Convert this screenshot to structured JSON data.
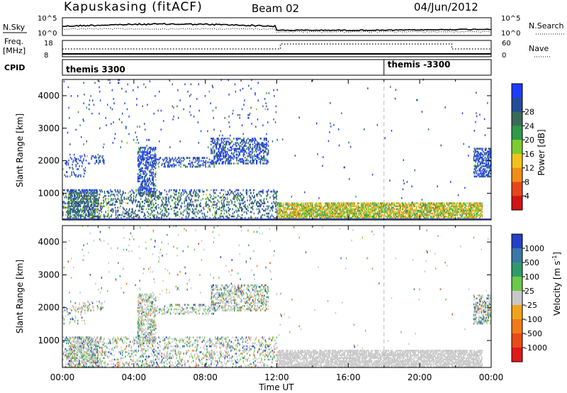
{
  "header": {
    "station": "Kapuskasing (fitACF)",
    "beam": "Beam 02",
    "date": "04/Jun/2012"
  },
  "strips": {
    "nsky_label": "N.Sky",
    "nsky_ticks": [
      "10^5",
      "10^0"
    ],
    "nsearch_label": "N.Search",
    "nsearch_ticks": [
      "10^5",
      "10^0"
    ],
    "freq_label_1": "Freq.",
    "freq_label_2": "[MHz]",
    "freq_ticks": [
      "18",
      "8"
    ],
    "nave_label": "Nave",
    "nave_ticks": [
      "60",
      "0"
    ],
    "cpid_label": "CPID",
    "cpid_entries": [
      {
        "name": "themis 3300",
        "start_ut": 0
      },
      {
        "name": "themis -3300",
        "start_ut": 18
      }
    ]
  },
  "chart_data": [
    {
      "type": "heatmap",
      "title": "",
      "xlabel": "",
      "ylabel": "Slant Range [km]",
      "xlim": [
        0,
        24
      ],
      "ylim": [
        180,
        4500
      ],
      "yticks": [
        1000,
        2000,
        3000,
        4000
      ],
      "colorbar": {
        "label": "Power [dB]",
        "ticks": [
          "4",
          "8",
          "12",
          "16",
          "20",
          "24",
          "28"
        ],
        "colors": [
          "#1e3cff",
          "#244c9a",
          "#3c6a58",
          "#2f9a47",
          "#7dcc2f",
          "#f2c21a",
          "#f28c18",
          "#e8461a",
          "#d21414"
        ]
      }
    },
    {
      "type": "heatmap",
      "title": "",
      "xlabel": "Time UT",
      "ylabel": "Slant Range [km]",
      "xlim": [
        0,
        24
      ],
      "ylim": [
        180,
        4500
      ],
      "yticks": [
        1000,
        2000,
        3000,
        4000
      ],
      "xticks": [
        "00:00",
        "04:00",
        "08:00",
        "12:00",
        "16:00",
        "20:00",
        "00:00"
      ],
      "colorbar": {
        "label": "Velocity [m s",
        "label_sup": "-1",
        "label_end": "]",
        "ticks": [
          "1000",
          "500",
          "100",
          "25",
          "-25",
          "-100",
          "-500",
          "-1000"
        ],
        "colors": [
          "#2440c8",
          "#3a78a8",
          "#2f9a6a",
          "#6cc94a",
          "#c8c8c8",
          "#f0a418",
          "#f07a18",
          "#e84a18",
          "#e01818"
        ]
      }
    }
  ]
}
